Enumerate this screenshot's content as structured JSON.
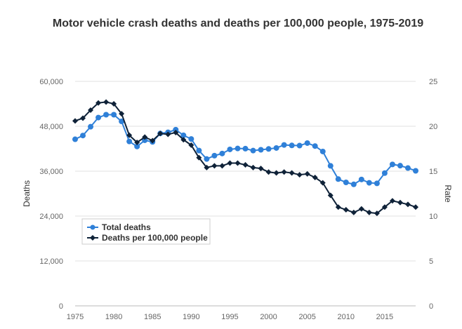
{
  "chart_data": {
    "type": "line",
    "title": "Motor vehicle crash deaths and deaths per 100,000 people, 1975-2019",
    "xlabel": "",
    "ylabel": "Deaths",
    "y2label": "Rate",
    "xlim": [
      1975,
      2019
    ],
    "ylim": [
      0,
      60000
    ],
    "y2lim": [
      0,
      25
    ],
    "grid": true,
    "legend_position": "bottom-left",
    "x_ticks": [
      "1975",
      "1980",
      "1985",
      "1990",
      "1995",
      "2000",
      "2005",
      "2010",
      "2015"
    ],
    "y_ticks": [
      "0",
      "12,000",
      "24,000",
      "36,000",
      "48,000",
      "60,000"
    ],
    "y2_ticks": [
      "0",
      "5",
      "10",
      "15",
      "20",
      "25"
    ],
    "x": [
      1975,
      1976,
      1977,
      1978,
      1979,
      1980,
      1981,
      1982,
      1983,
      1984,
      1985,
      1986,
      1987,
      1988,
      1989,
      1990,
      1991,
      1992,
      1993,
      1994,
      1995,
      1996,
      1997,
      1998,
      1999,
      2000,
      2001,
      2002,
      2003,
      2004,
      2005,
      2006,
      2007,
      2008,
      2009,
      2010,
      2011,
      2012,
      2013,
      2014,
      2015,
      2016,
      2017,
      2018,
      2019
    ],
    "series": [
      {
        "name": "Total deaths",
        "axis": "left",
        "color": "#2f80d8",
        "marker": "circle",
        "values": [
          44525,
          45523,
          47878,
          50331,
          51093,
          51091,
          49301,
          43945,
          42589,
          44257,
          43825,
          46087,
          46390,
          47087,
          45582,
          44599,
          41508,
          39250,
          40150,
          40716,
          41817,
          42065,
          42013,
          41501,
          41717,
          41945,
          42196,
          43005,
          42884,
          42836,
          43510,
          42708,
          41259,
          37423,
          33883,
          32999,
          32479,
          33782,
          32893,
          32744,
          35484,
          37806,
          37473,
          36835,
          36096
        ]
      },
      {
        "name": "Deaths per 100,000 people",
        "axis": "right",
        "color": "#0f2238",
        "marker": "diamond",
        "values": [
          20.6,
          20.9,
          21.8,
          22.6,
          22.7,
          22.5,
          21.4,
          19.0,
          18.2,
          18.8,
          18.4,
          19.2,
          19.1,
          19.3,
          18.5,
          17.9,
          16.5,
          15.4,
          15.6,
          15.6,
          15.9,
          15.9,
          15.7,
          15.4,
          15.3,
          14.9,
          14.8,
          14.9,
          14.8,
          14.6,
          14.7,
          14.3,
          13.7,
          12.3,
          11.0,
          10.7,
          10.4,
          10.8,
          10.4,
          10.3,
          11.0,
          11.7,
          11.5,
          11.3,
          11.0
        ]
      }
    ]
  }
}
